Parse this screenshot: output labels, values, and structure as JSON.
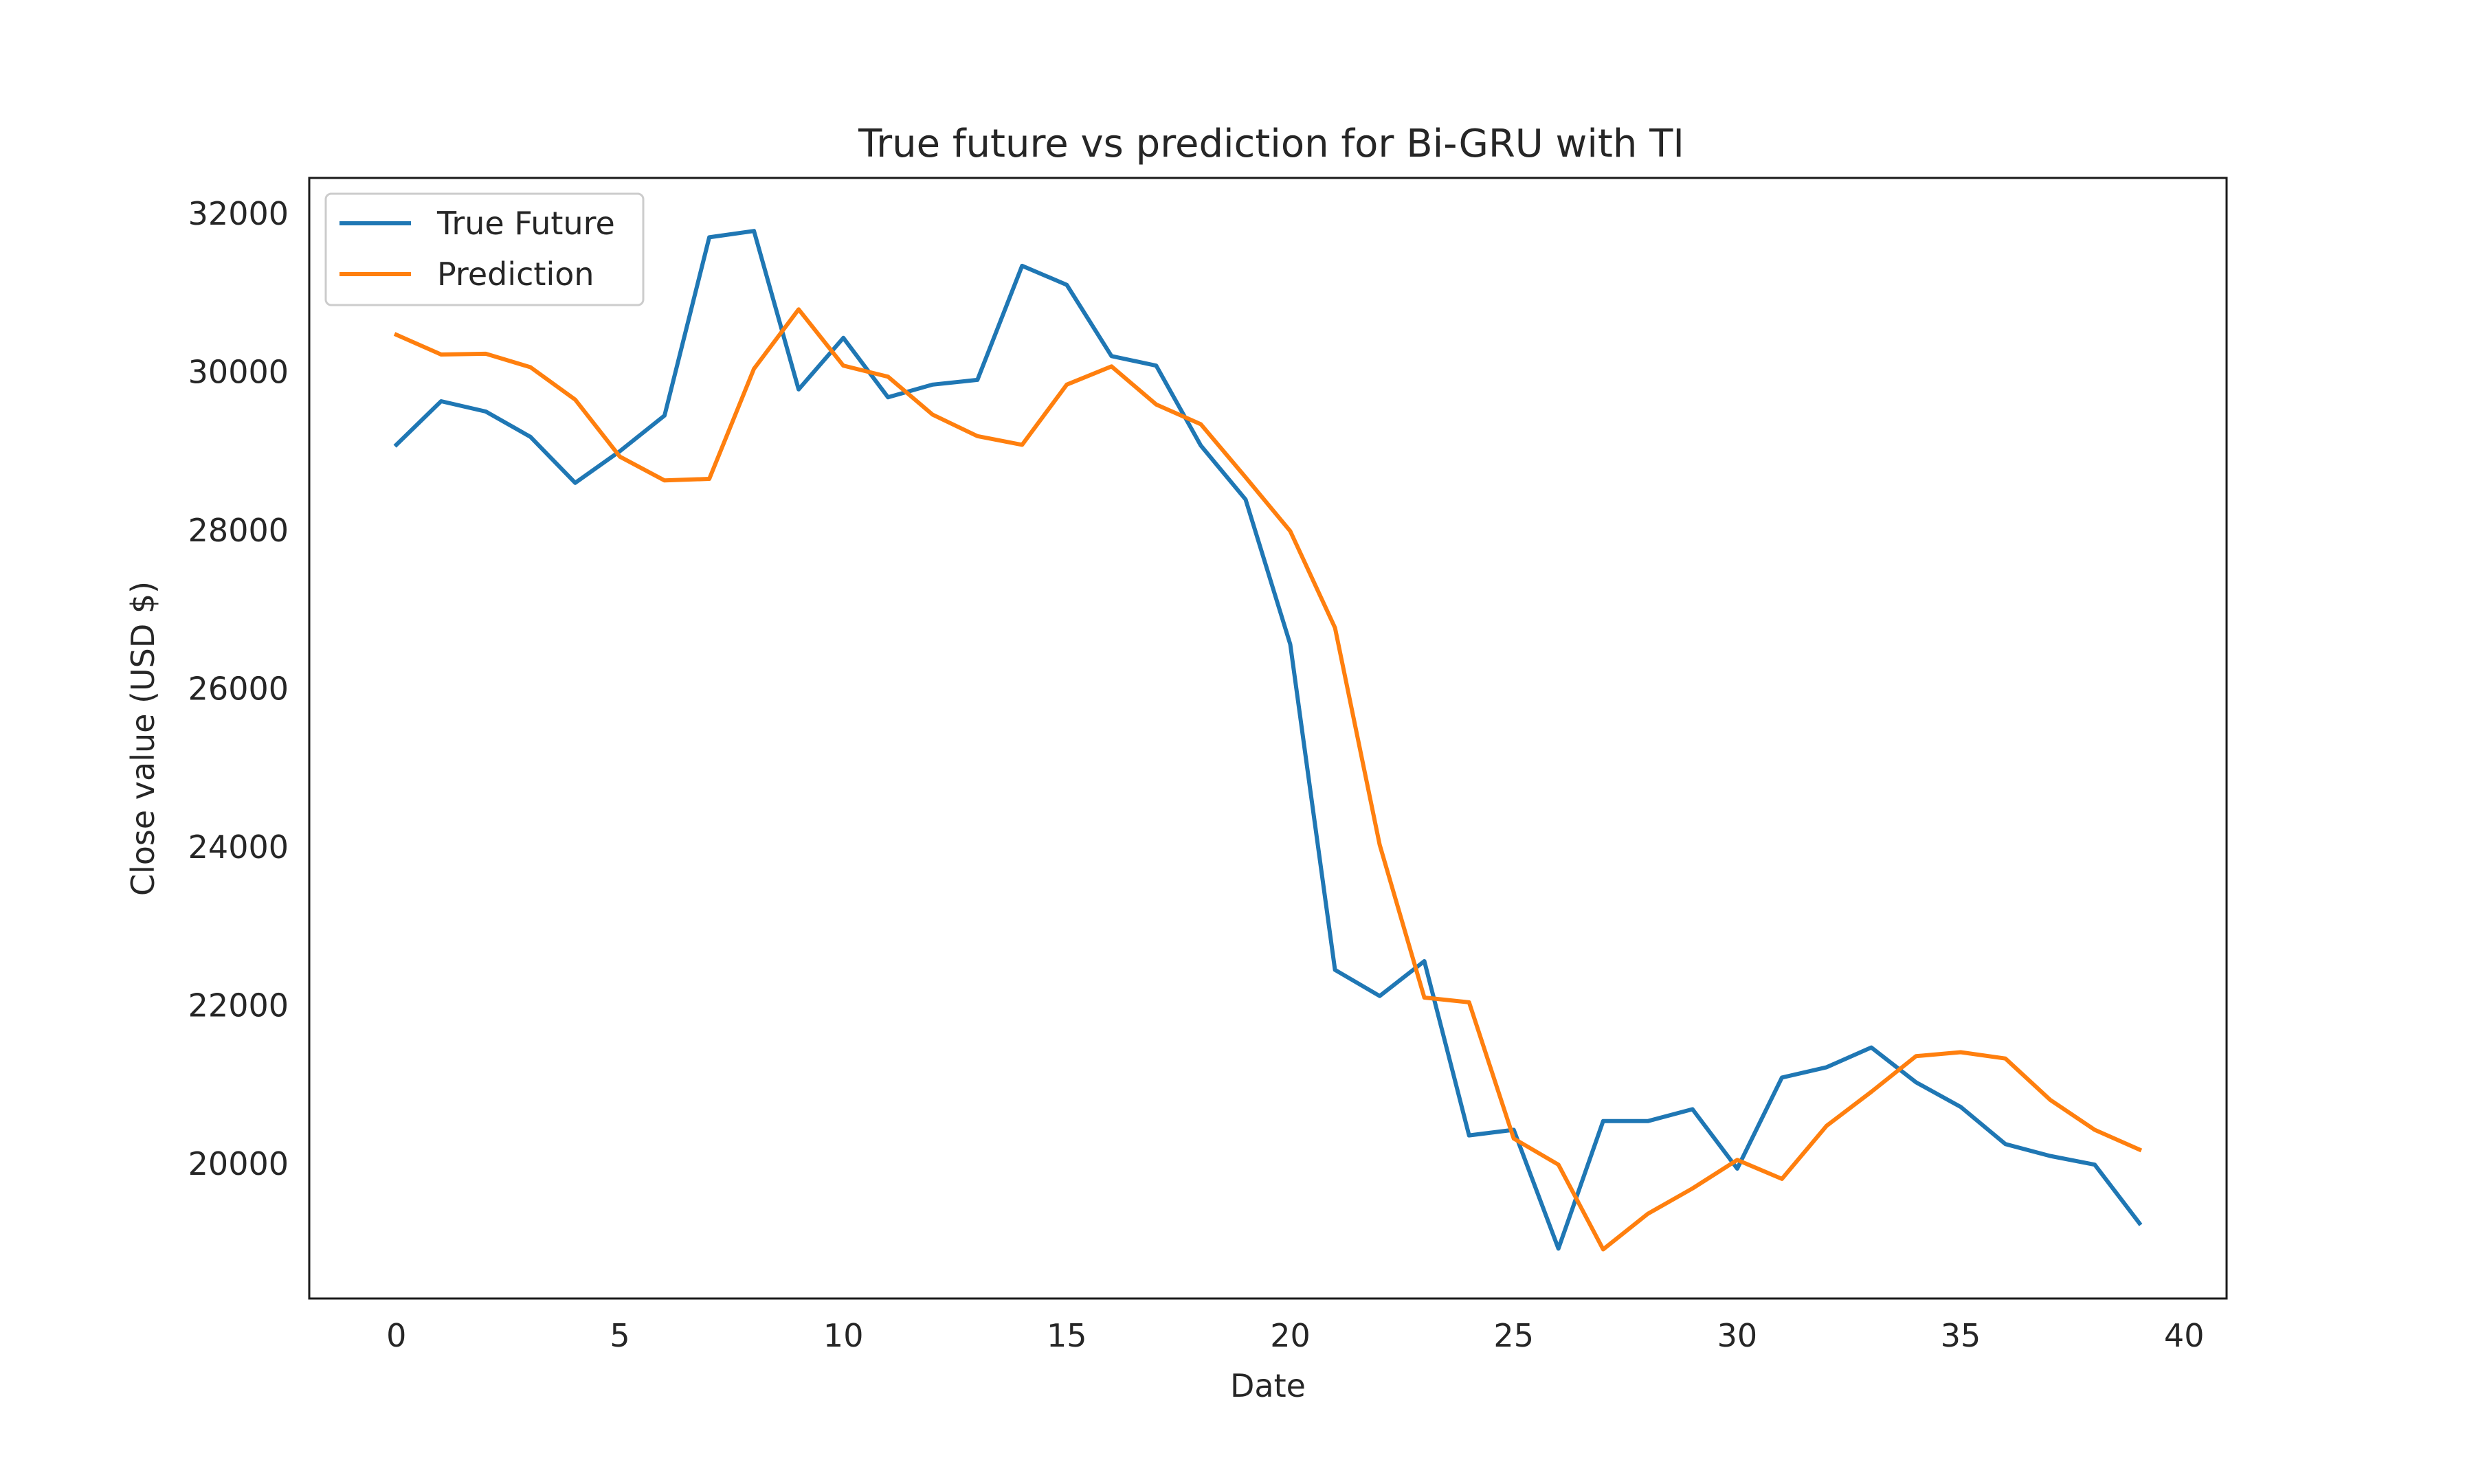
{
  "chart_data": {
    "type": "line",
    "title": "True future vs prediction for Bi-GRU with TI",
    "xlabel": "Date",
    "ylabel": "Close value (USD $)",
    "xlim": [
      -1.95,
      40.95
    ],
    "ylim": [
      18300,
      32450
    ],
    "xticks": [
      0,
      5,
      10,
      15,
      20,
      25,
      30,
      35,
      40
    ],
    "yticks": [
      20000,
      22000,
      24000,
      26000,
      28000,
      30000,
      32000
    ],
    "grid": false,
    "legend_position": "top-left",
    "x": [
      0,
      1,
      2,
      3,
      4,
      5,
      6,
      7,
      8,
      9,
      10,
      11,
      12,
      13,
      14,
      15,
      16,
      17,
      18,
      19,
      20,
      21,
      22,
      23,
      24,
      25,
      26,
      27,
      28,
      29,
      30,
      31,
      32,
      33,
      34,
      35,
      36,
      37,
      38,
      39
    ],
    "series": [
      {
        "name": "True Future",
        "color": "#1f77b4",
        "values": [
          29080,
          29630,
          29500,
          29180,
          28600,
          29000,
          29450,
          31700,
          31780,
          29780,
          30430,
          29680,
          29840,
          29900,
          31340,
          31100,
          30200,
          30080,
          29070,
          28390,
          26560,
          22450,
          22120,
          22560,
          20360,
          20430,
          18930,
          20540,
          20540,
          20690,
          19940,
          21090,
          21220,
          21470,
          21030,
          20720,
          20250,
          20100,
          19990,
          19250
        ]
      },
      {
        "name": "Prediction",
        "color": "#ff7f0e",
        "values": [
          30470,
          30220,
          30230,
          30060,
          29650,
          28930,
          28630,
          28650,
          30040,
          30790,
          30080,
          29940,
          29460,
          29190,
          29080,
          29840,
          30070,
          29590,
          29340,
          28670,
          27990,
          26770,
          24030,
          22100,
          22040,
          20320,
          19990,
          18920,
          19370,
          19690,
          20050,
          19810,
          20480,
          20910,
          21360,
          21410,
          21330,
          20810,
          20430,
          20180
        ]
      }
    ]
  }
}
